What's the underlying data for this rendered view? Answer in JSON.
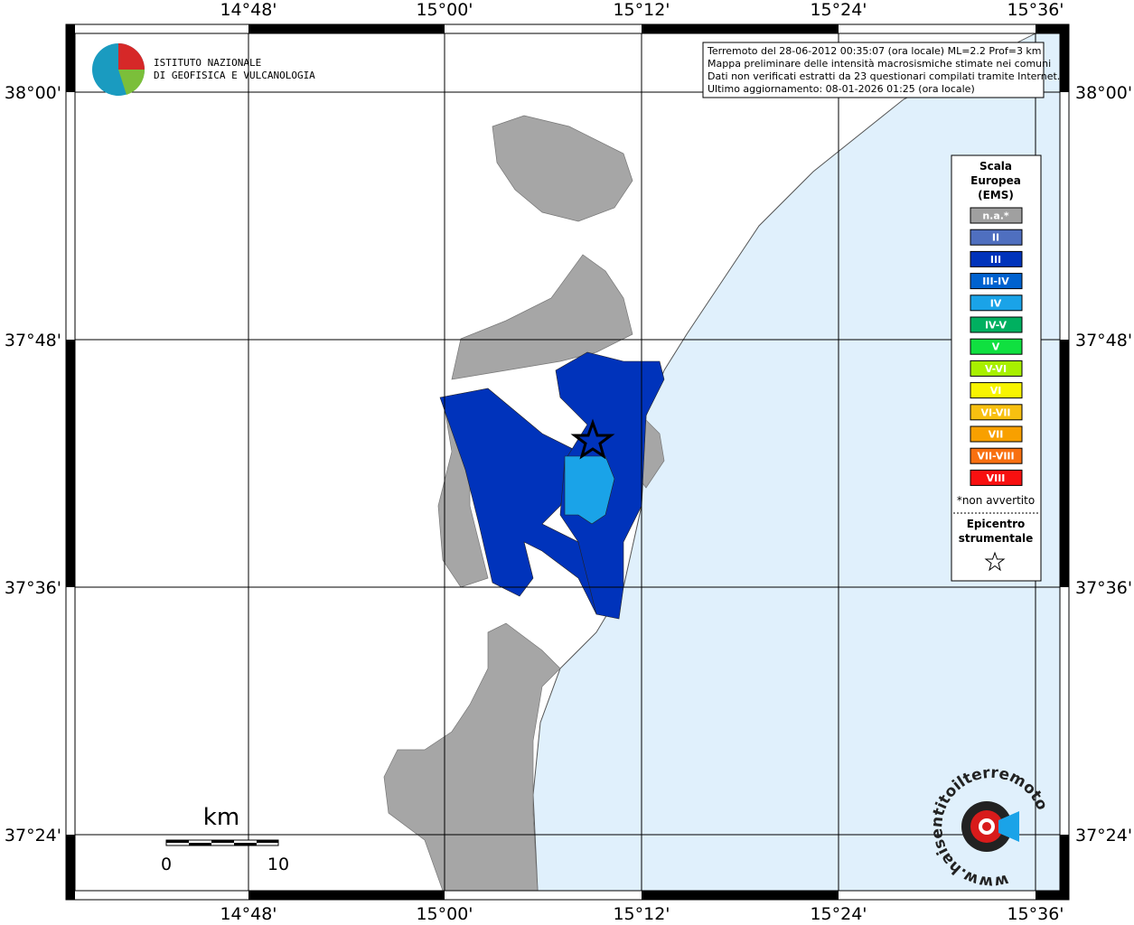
{
  "logo": {
    "line1": "ISTITUTO NAZIONALE",
    "line2": "DI GEOFISICA E VULCANOLOGIA"
  },
  "info": [
    "Terremoto del 28-06-2012 00:35:07 (ora locale) ML=2.2 Prof=3 km",
    "Mappa preliminare delle intensità macrosismiche stimate nei comuni",
    "Dati non verificati estratti da 23 questionari compilati tramite Internet.",
    "Ultimo aggiornamento: 08-01-2026 01:25 (ora locale)"
  ],
  "lon_labels": [
    "14°48'",
    "15°00'",
    "15°12'",
    "15°24'",
    "15°36'"
  ],
  "lat_labels": [
    "38°00'",
    "37°48'",
    "37°36'",
    "37°24'"
  ],
  "legend": {
    "title": [
      "Scala",
      "Europea",
      "(EMS)"
    ],
    "items": [
      {
        "label": "n.a.*",
        "color": "#a0a0a0"
      },
      {
        "label": "II",
        "color": "#4f6fbf"
      },
      {
        "label": "III",
        "color": "#0033bb"
      },
      {
        "label": "III-IV",
        "color": "#0062d0"
      },
      {
        "label": "IV",
        "color": "#1aa3e8"
      },
      {
        "label": "IV-V",
        "color": "#00b060"
      },
      {
        "label": "V",
        "color": "#10e040"
      },
      {
        "label": "V-VI",
        "color": "#a8f000"
      },
      {
        "label": "VI",
        "color": "#f8f400"
      },
      {
        "label": "VI-VII",
        "color": "#f8c010"
      },
      {
        "label": "VII",
        "color": "#f8a000"
      },
      {
        "label": "VII-VIII",
        "color": "#f87010"
      },
      {
        "label": "VIII",
        "color": "#f81010"
      }
    ],
    "note": "*non avvertito",
    "epicenter": [
      "Epicentro",
      "strumentale"
    ]
  },
  "scale": {
    "unit": "km",
    "min": "0",
    "max": "10"
  },
  "site_logo": "www.haisentitoilterremoto.it"
}
